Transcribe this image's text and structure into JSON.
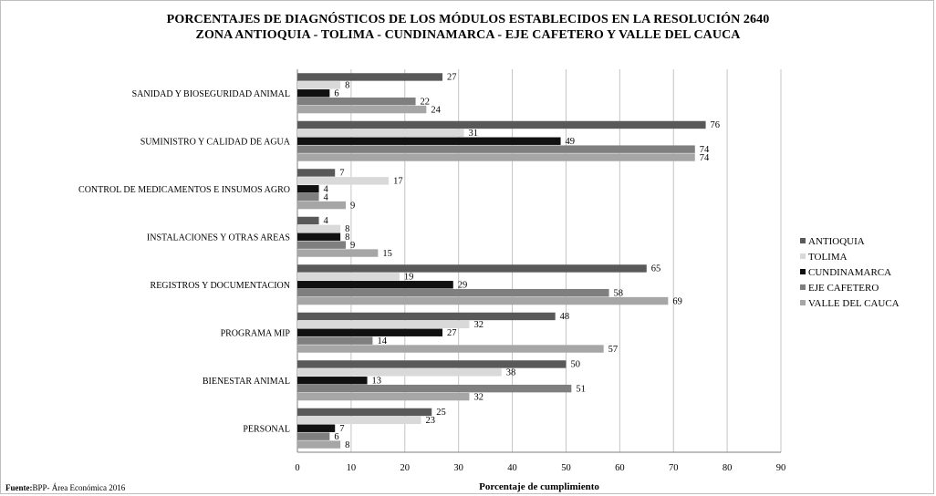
{
  "title_line1": "PORCENTAJES DE DIAGNÓSTICOS DE LOS MÓDULOS ESTABLECIDOS EN LA RESOLUCIÓN 2640",
  "title_line2": "ZONA ANTIOQUIA - TOLIMA - CUNDINAMARCA - EJE CAFETERO Y VALLE DEL CAUCA",
  "source_prefix": "Fuente:",
  "source_text": "BPP- Área Económica 2016",
  "chart_data": {
    "type": "bar",
    "orientation": "horizontal",
    "title": "PORCENTAJES DE DIAGNÓSTICOS DE LOS MÓDULOS ESTABLECIDOS EN LA RESOLUCIÓN 2640 ZONA ANTIOQUIA - TOLIMA - CUNDINAMARCA - EJE CAFETERO Y VALLE DEL CAUCA",
    "xlabel": "Porcentaje de cumplimiento",
    "ylabel": "",
    "xlim": [
      0,
      90
    ],
    "xticks": [
      0,
      10,
      20,
      30,
      40,
      50,
      60,
      70,
      80,
      90
    ],
    "grid": "vertical",
    "legend_position": "right",
    "categories": [
      "SANIDAD Y BIOSEGURIDAD ANIMAL",
      "SUMINISTRO Y CALIDAD DE AGUA",
      "CONTROL DE MEDICAMENTOS E INSUMOS AGRO",
      "INSTALACIONES Y OTRAS AREAS",
      "REGISTROS Y DOCUMENTACION",
      "PROGRAMA MIP",
      "BIENESTAR ANIMAL",
      "PERSONAL"
    ],
    "series": [
      {
        "name": "ANTIOQUIA",
        "color": "#595959",
        "values": [
          27,
          76,
          7,
          4,
          65,
          48,
          50,
          25
        ]
      },
      {
        "name": "TOLIMA",
        "color": "#d9d9d9",
        "values": [
          8,
          31,
          17,
          8,
          19,
          32,
          38,
          23
        ]
      },
      {
        "name": "CUNDINAMARCA",
        "color": "#111111",
        "values": [
          6,
          49,
          4,
          8,
          29,
          27,
          13,
          7
        ]
      },
      {
        "name": "EJE CAFETERO",
        "color": "#7f7f7f",
        "values": [
          22,
          74,
          4,
          9,
          58,
          14,
          51,
          6
        ]
      },
      {
        "name": "VALLE DEL CAUCA",
        "color": "#a6a6a6",
        "values": [
          24,
          74,
          9,
          15,
          69,
          57,
          32,
          8
        ]
      }
    ]
  }
}
